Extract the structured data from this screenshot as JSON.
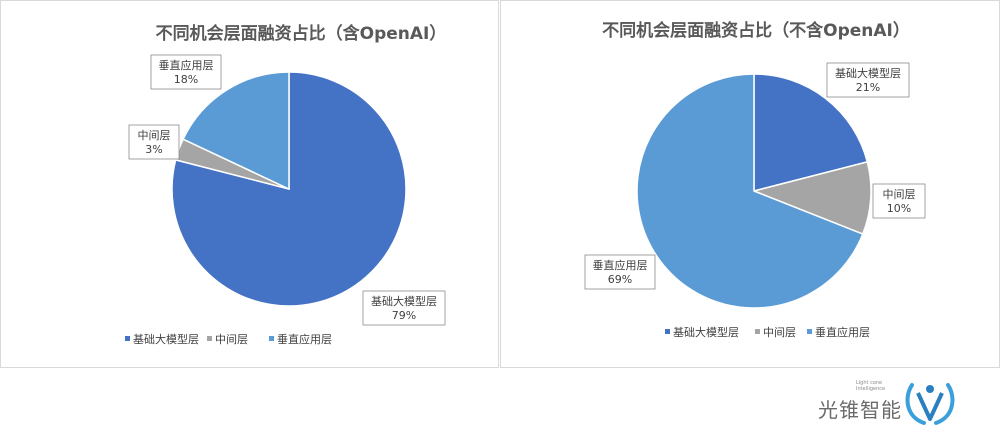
{
  "chart_data": [
    {
      "type": "pie",
      "title": "不同机会层面融资占比（含OpenAI）",
      "start_angle_deg": 0,
      "direction": "clockwise",
      "slices": [
        {
          "label": "基础大模型层",
          "value": 79,
          "display": "79%",
          "color": "#4472C4"
        },
        {
          "label": "中间层",
          "value": 3,
          "display": "3%",
          "color": "#A5A5A5"
        },
        {
          "label": "垂直应用层",
          "value": 18,
          "display": "18%",
          "color": "#5B9BD5"
        }
      ],
      "legend": {
        "placement": "bottom",
        "entries": [
          "基础大模型层",
          "中间层",
          "垂直应用层"
        ]
      }
    },
    {
      "type": "pie",
      "title": "不同机会层面融资占比（不含OpenAI）",
      "start_angle_deg": 0,
      "direction": "clockwise",
      "slices": [
        {
          "label": "基础大模型层",
          "value": 21,
          "display": "21%",
          "color": "#4472C4"
        },
        {
          "label": "中间层",
          "value": 10,
          "display": "10%",
          "color": "#A5A5A5"
        },
        {
          "label": "垂直应用层",
          "value": 69,
          "display": "69%",
          "color": "#5B9BD5"
        }
      ],
      "legend": {
        "placement": "bottom",
        "entries": [
          "基础大模型层",
          "中间层",
          "垂直应用层"
        ]
      }
    }
  ],
  "footer": {
    "logo_text": "光锥智能",
    "logo_sub_1": "Light cone",
    "logo_sub_2": "Intelligence",
    "logo_icon": "light-cone-logo-icon"
  }
}
